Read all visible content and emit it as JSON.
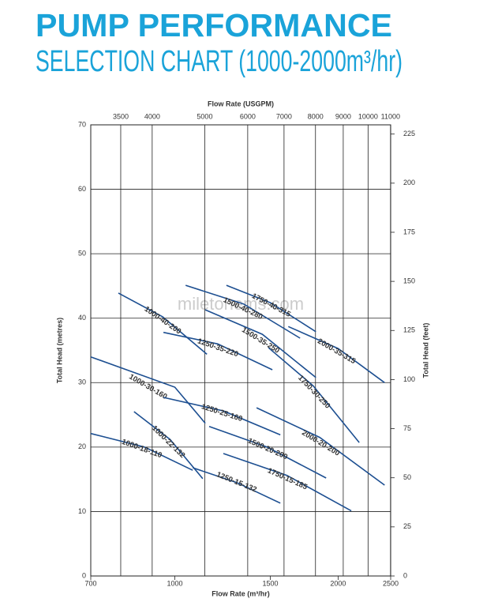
{
  "chart_data": {
    "type": "line",
    "title": "PUMP PERFORMANCE",
    "subtitle": "SELECTION CHART (1000-2000m³/hr)",
    "watermark": "miletonems.com",
    "xlabel": "Flow Rate (m³/hr)",
    "x2label": "Flow Rate (USGPM)",
    "ylabel": "Total Head (metres)",
    "y2label": "Total Head (feet)",
    "xscale": "log",
    "xlim": [
      700,
      2500
    ],
    "xticks": [
      700,
      1000,
      1500,
      2000,
      2500
    ],
    "x2lim": [
      3082,
      11007
    ],
    "x2ticks": [
      3500,
      4000,
      5000,
      6000,
      7000,
      8000,
      9000,
      10000,
      11000
    ],
    "ylim": [
      0,
      70
    ],
    "yticks": [
      0,
      10,
      20,
      30,
      40,
      50,
      60,
      70
    ],
    "y2lim": [
      0,
      229.7
    ],
    "y2ticks": [
      0,
      25,
      50,
      75,
      100,
      125,
      150,
      175,
      200,
      225
    ],
    "grid": true,
    "color": "#1d4f91",
    "series": [
      {
        "name": "1000-18-110",
        "x": [
          700,
          880,
          1079
        ],
        "values": [
          22.1,
          20.0,
          16.4
        ]
      },
      {
        "name": "1000-22-132",
        "x": [
          841,
          980,
          1126
        ],
        "values": [
          25.5,
          21.2,
          15.1
        ]
      },
      {
        "name": "1000-30-160",
        "x": [
          700,
          1000,
          1138
        ],
        "values": [
          34.0,
          29.3,
          23.7
        ]
      },
      {
        "name": "1000-40-200",
        "x": [
          787,
          950,
          1146
        ],
        "values": [
          43.9,
          40.2,
          34.4
        ]
      },
      {
        "name": "1250-35-220",
        "x": [
          953,
          1200,
          1513
        ],
        "values": [
          37.8,
          36.0,
          32.0
        ]
      },
      {
        "name": "1500-40-280",
        "x": [
          1047,
          1340,
          1702
        ],
        "values": [
          45.1,
          42.2,
          36.9
        ]
      },
      {
        "name": "1750-40-315",
        "x": [
          1245,
          1500,
          1820
        ],
        "values": [
          45.1,
          42.4,
          37.9
        ]
      },
      {
        "name": "1500-35-250",
        "x": [
          1138,
          1450,
          1820
        ],
        "values": [
          41.3,
          37.5,
          30.8
        ]
      },
      {
        "name": "1750-30-250",
        "x": [
          1489,
          1800,
          2188
        ],
        "values": [
          35.4,
          29.5,
          20.7
        ]
      },
      {
        "name": "2000-35-315",
        "x": [
          1619,
          2000,
          2436
        ],
        "values": [
          38.7,
          35.3,
          30.0
        ]
      },
      {
        "name": "1250-25-160",
        "x": [
          953,
          1230,
          1565
        ],
        "values": [
          27.7,
          25.6,
          21.9
        ]
      },
      {
        "name": "2000-20-200",
        "x": [
          1415,
          1850,
          2436
        ],
        "values": [
          26.1,
          21.5,
          14.1
        ]
      },
      {
        "name": "1500-20-200",
        "x": [
          1157,
          1480,
          1901
        ],
        "values": [
          23.2,
          20.0,
          15.2
        ]
      },
      {
        "name": "1750-15-185",
        "x": [
          1229,
          1610,
          2115
        ],
        "values": [
          19.0,
          15.6,
          10.1
        ]
      },
      {
        "name": "1250-15-132",
        "x": [
          1079,
          1300,
          1565
        ],
        "values": [
          16.8,
          14.5,
          11.3
        ]
      }
    ]
  }
}
